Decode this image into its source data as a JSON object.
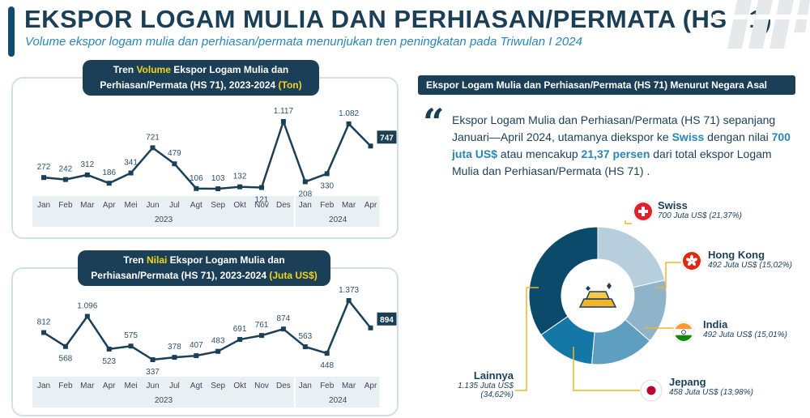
{
  "header": {
    "title": "EKSPOR LOGAM MULIA DAN PERHIASAN/PERMATA (HS 71)",
    "subtitle": "Volume ekspor logam mulia dan perhiasan/permata menunjukan tren peningkatan pada Triwulan I 2024"
  },
  "volume_panel": {
    "title_part1": "Tren ",
    "title_highlight": "Volume",
    "title_part2": " Ekspor Logam Mulia dan",
    "title_line2a": "Perhiasan/Permata (HS 71), 2023-2024 ",
    "title_line2b": "(Ton)"
  },
  "value_panel": {
    "title_part1": "Tren ",
    "title_highlight": "Nilai",
    "title_part2": " Ekspor Logam Mulia dan",
    "title_line2a": "Perhiasan/Permata (HS 71), 2023-2024 ",
    "title_line2b": "(Juta US$)"
  },
  "right": {
    "header": "Ekspor Logam Mulia dan Perhiasan/Permata (HS 71) Menurut Negara Asal",
    "quote_mark": "“",
    "desc_1": "Ekspor Logam Mulia dan Perhiasan/Permata (HS 71) sepanjang Januari—April 2024, utamanya diekspor ke ",
    "desc_swiss": "Swiss",
    "desc_2": " dengan nilai ",
    "desc_value": "700 juta US$",
    "desc_3": " atau mencakup ",
    "desc_pct": "21,37 persen",
    "desc_4": " dari total ekspor Logam Mulia dan Perhiasan/Permata (HS 71) ."
  },
  "countries": {
    "swiss": {
      "name": "Swiss",
      "value": "700 Juta US$ (21,37%)"
    },
    "hongkong": {
      "name": "Hong Kong",
      "value": "492 Juta US$ (15,02%)"
    },
    "india": {
      "name": "India",
      "value": "492 Juta US$ (15,01%)"
    },
    "jepang": {
      "name": "Jepang",
      "value": "458 Juta US$ (13,98%)"
    },
    "lainnya": {
      "name": "Lainnya",
      "value_line1": "1.135 Juta US$",
      "value_line2": "(34,62%)"
    }
  },
  "chart_data": [
    {
      "type": "line",
      "title": "Tren Volume Ekspor Logam Mulia dan Perhiasan/Permata (HS 71), 2023-2024 (Ton)",
      "categories": [
        "Jan",
        "Feb",
        "Mar",
        "Apr",
        "Mei",
        "Jun",
        "Jul",
        "Agt",
        "Sep",
        "Okt",
        "Nov",
        "Des",
        "Jan",
        "Feb",
        "Mar",
        "Apr"
      ],
      "year_labels": [
        "2023",
        "2024"
      ],
      "values": [
        272,
        242,
        312,
        186,
        341,
        721,
        479,
        106,
        103,
        132,
        121,
        1117,
        208,
        330,
        1082,
        747
      ],
      "value_labels": [
        "272",
        "242",
        "312",
        "186",
        "341",
        "721",
        "479",
        "106",
        "103",
        "132",
        "121",
        "1.117",
        "208",
        "330",
        "1.082",
        "747"
      ],
      "highlight_last": true
    },
    {
      "type": "line",
      "title": "Tren Nilai Ekspor Logam Mulia dan Perhiasan/Permata (HS 71), 2023-2024 (Juta US$)",
      "categories": [
        "Jan",
        "Feb",
        "Mar",
        "Apr",
        "Mei",
        "Jun",
        "Jul",
        "Agt",
        "Sep",
        "Okt",
        "Nov",
        "Des",
        "Jan",
        "Feb",
        "Mar",
        "Apr"
      ],
      "year_labels": [
        "2023",
        "2024"
      ],
      "values": [
        812,
        568,
        1096,
        523,
        575,
        337,
        378,
        407,
        483,
        691,
        761,
        874,
        563,
        448,
        1373,
        894
      ],
      "value_labels": [
        "812",
        "568",
        "1.096",
        "523",
        "575",
        "337",
        "378",
        "407",
        "483",
        "691",
        "761",
        "874",
        "563",
        "448",
        "1.373",
        "894"
      ],
      "highlight_last": true
    },
    {
      "type": "pie",
      "labels": [
        "Swiss",
        "Hong Kong",
        "India",
        "Jepang",
        "Lainnya"
      ],
      "values": [
        21.37,
        15.02,
        15.01,
        13.98,
        34.62
      ],
      "colors": [
        "#b7cfdd",
        "#8fb3c8",
        "#5e9fc1",
        "#1577a6",
        "#0c4a6b"
      ]
    }
  ]
}
